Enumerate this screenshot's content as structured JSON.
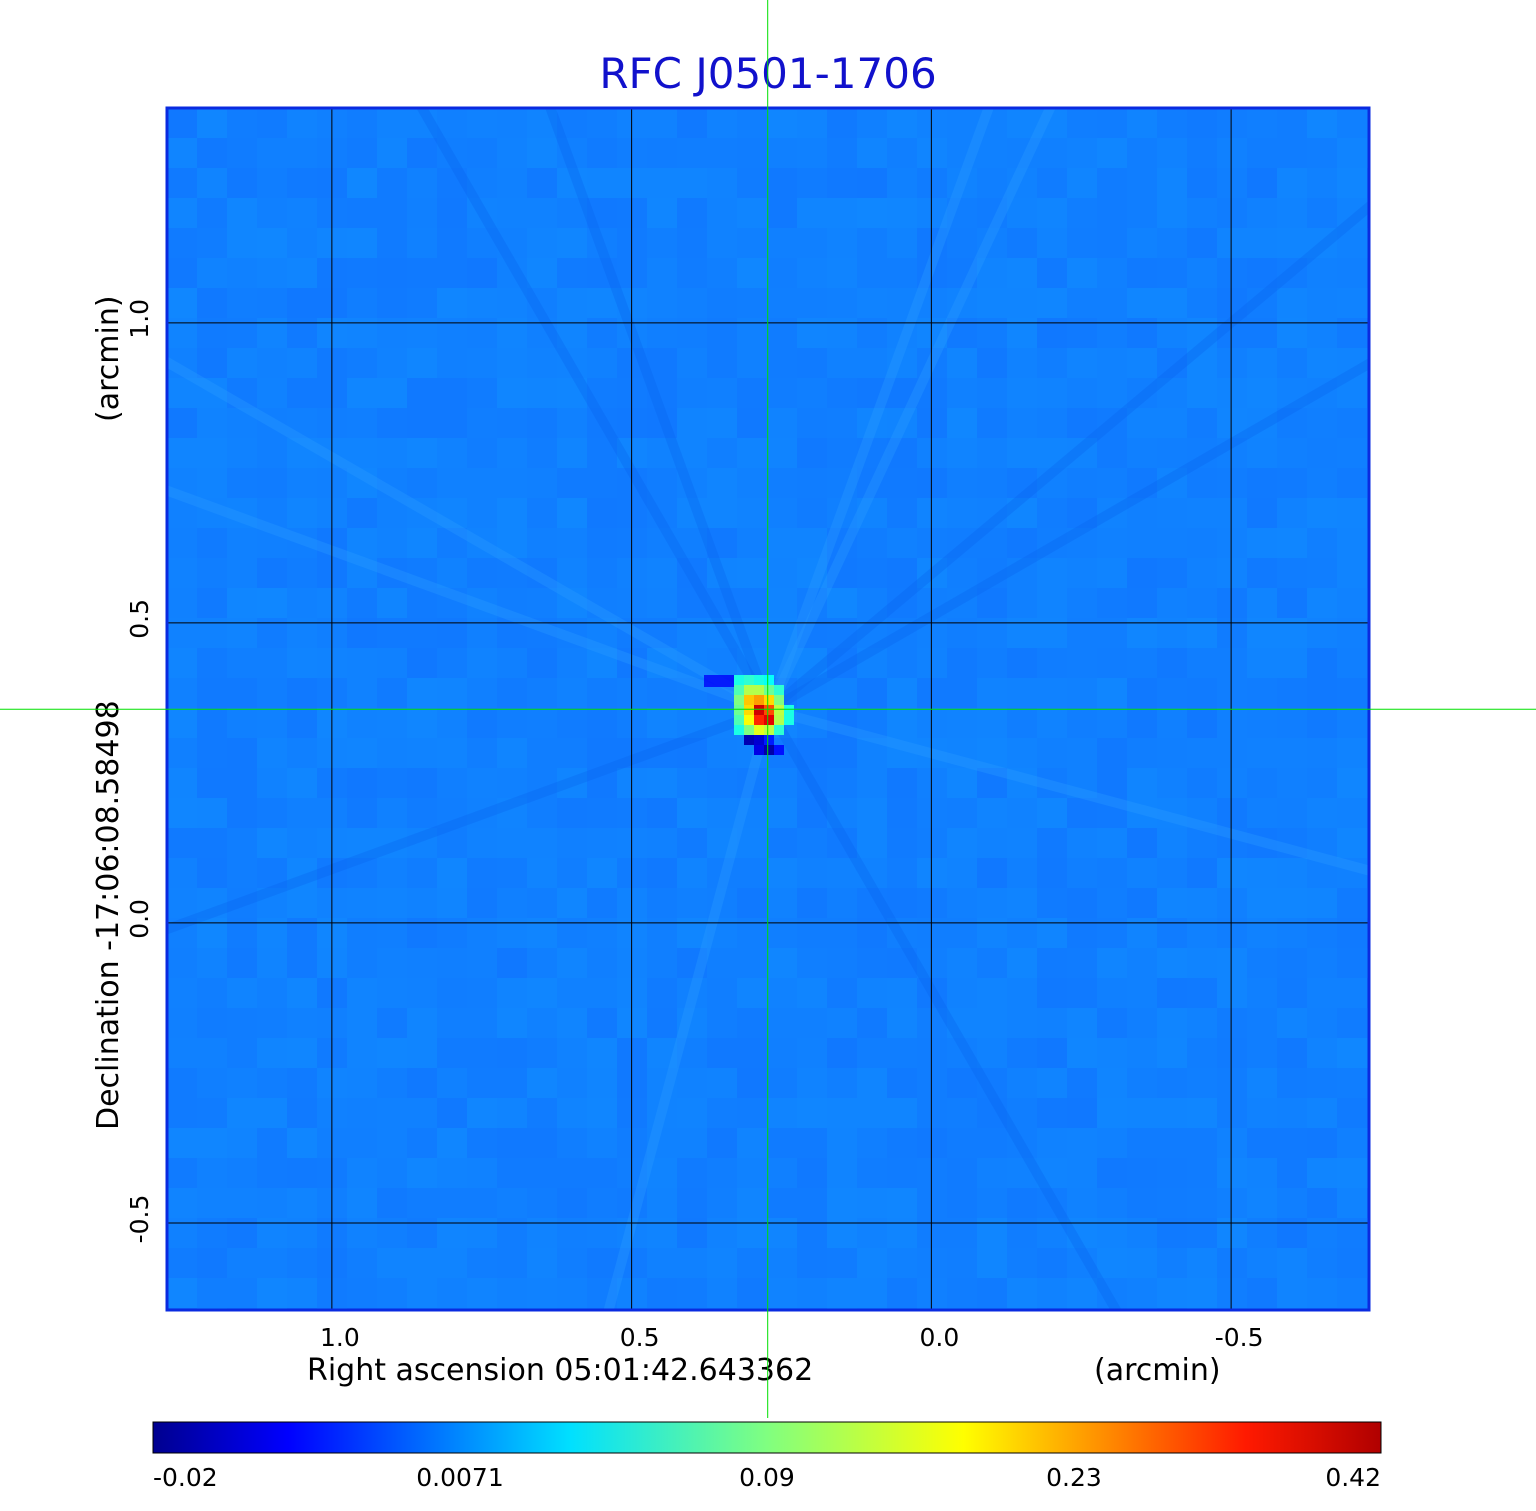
{
  "chart_data": {
    "type": "heatmap",
    "title": "RFC J0501-1706",
    "xlabel": "Right ascension  05:01:42.643362",
    "xunit": "(arcmin)",
    "ylabel": "Declination  -17:06:08.58498",
    "yunit": "(arcmin)",
    "xlim": [
      1.275,
      -0.73
    ],
    "ylim": [
      -0.645,
      1.358
    ],
    "x_ticks": [
      {
        "value": 1.0,
        "label": "1.0"
      },
      {
        "value": 0.5,
        "label": "0.5"
      },
      {
        "value": 0.0,
        "label": "0.0"
      },
      {
        "value": -0.5,
        "label": "-0.5"
      }
    ],
    "y_ticks": [
      {
        "value": 1.0,
        "label": "1.0"
      },
      {
        "value": 0.5,
        "label": "0.5"
      },
      {
        "value": 0.0,
        "label": "0.0"
      },
      {
        "value": -0.5,
        "label": "-0.5"
      }
    ],
    "grid": true,
    "crosshair": {
      "x": 0.273,
      "y": 0.356,
      "color": "#00e000"
    },
    "colormap": "jet",
    "colorbar": {
      "range": [
        -0.02,
        0.42
      ],
      "ticks": [
        {
          "value": -0.02,
          "label": "-0.02"
        },
        {
          "value": 0.0071,
          "label": "0.0071"
        },
        {
          "value": 0.09,
          "label": "0.09"
        },
        {
          "value": 0.23,
          "label": "0.23"
        },
        {
          "value": 0.42,
          "label": "0.42"
        }
      ]
    },
    "background_level": 0.0,
    "source": {
      "x": 0.27,
      "y": 0.355,
      "peak": 0.42
    }
  }
}
